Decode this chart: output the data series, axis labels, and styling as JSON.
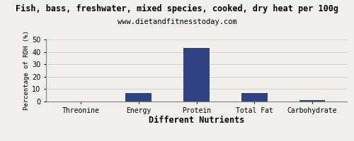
{
  "title": "Fish, bass, freshwater, mixed species, cooked, dry heat per 100g",
  "subtitle": "www.dietandfitnesstoday.com",
  "xlabel": "Different Nutrients",
  "ylabel": "Percentage of RDH (%)",
  "categories": [
    "Threonine",
    "Energy",
    "Protein",
    "Total Fat",
    "Carbohydrate"
  ],
  "values": [
    0,
    7,
    43,
    7,
    1
  ],
  "bar_color": "#2e4482",
  "ylim": [
    0,
    50
  ],
  "yticks": [
    0,
    10,
    20,
    30,
    40,
    50
  ],
  "background_color": "#f0f0e8",
  "title_fontsize": 8.5,
  "subtitle_fontsize": 7.5,
  "xlabel_fontsize": 8.5,
  "ylabel_fontsize": 6.5,
  "tick_fontsize": 7
}
